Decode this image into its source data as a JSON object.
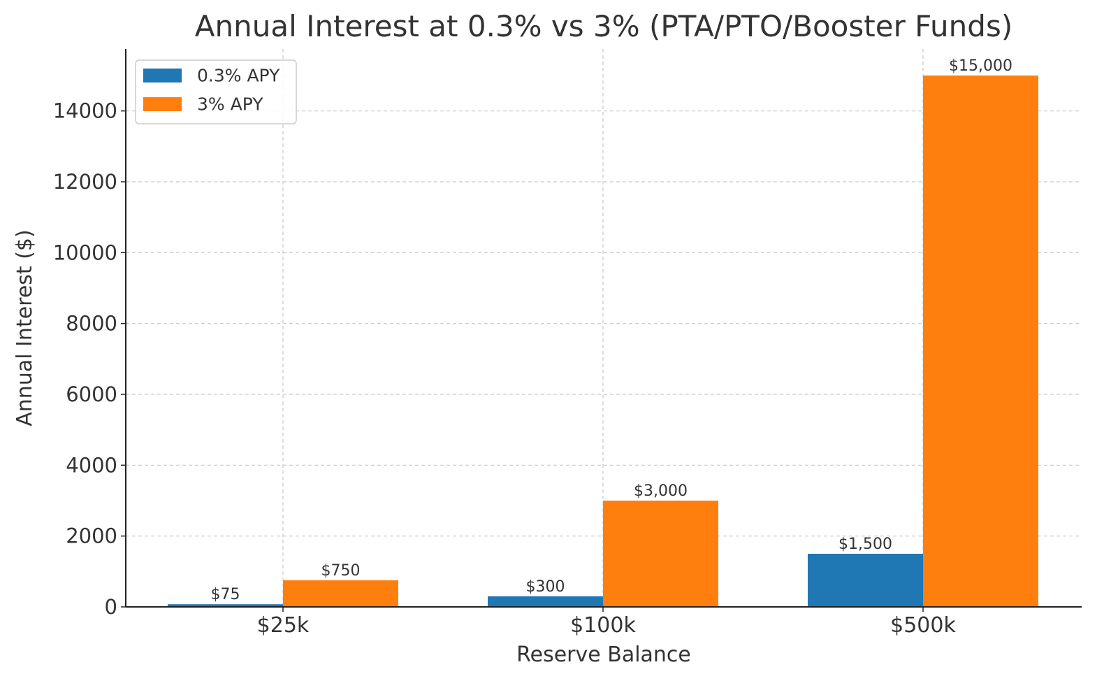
{
  "chart_data": {
    "type": "bar",
    "title": "Annual Interest at 0.3% vs 3% (PTA/PTO/Booster Funds)",
    "xlabel": "Reserve Balance",
    "ylabel": "Annual Interest ($)",
    "categories": [
      "$25k",
      "$100k",
      "$500k"
    ],
    "series": [
      {
        "name": "0.3% APY",
        "color": "#1f77b4",
        "values": [
          75,
          300,
          1500
        ],
        "labels": [
          "$75",
          "$300",
          "$1,500"
        ]
      },
      {
        "name": "3% APY",
        "color": "#ff7f0e",
        "values": [
          750,
          3000,
          15000
        ],
        "labels": [
          "$750",
          "$3,000",
          "$15,000"
        ]
      }
    ],
    "ylim": [
      0,
      15750
    ],
    "yticks": [
      0,
      2000,
      4000,
      6000,
      8000,
      10000,
      12000,
      14000
    ],
    "ytick_labels": [
      "0",
      "2000",
      "4000",
      "6000",
      "8000",
      "10000",
      "12000",
      "14000"
    ],
    "grid": true,
    "legend_position": "top-left"
  }
}
